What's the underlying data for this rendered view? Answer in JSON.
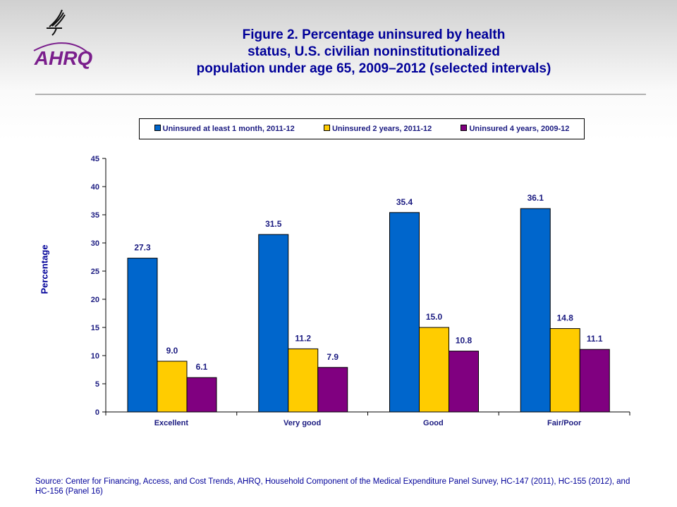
{
  "logo_text": "AHRQ",
  "title": "Figure 2. Percentage uninsured by health status, U.S. civilian noninstitutionalized population under age 65, 2009–2012 (selected intervals)",
  "title_lines": [
    "Figure 2. Percentage uninsured by health",
    "status, U.S. civilian noninstitutionalized",
    "population under age 65, 2009–2012 (selected intervals)"
  ],
  "source": "Source: Center for Financing, Access, and Cost Trends, AHRQ, Household Component of the Medical Expenditure Panel Survey, HC-147 (2011), HC-155 (2012), and HC-156 (Panel 16)",
  "chart_data": {
    "type": "bar",
    "title": "Figure 2. Percentage uninsured by health status, U.S. civilian noninstitutionalized population under age 65, 2009–2012 (selected intervals)",
    "xlabel": "",
    "ylabel": "Percentage",
    "ylim": [
      0,
      45
    ],
    "yticks": [
      0,
      5,
      10,
      15,
      20,
      25,
      30,
      35,
      40,
      45
    ],
    "grid": false,
    "legend_position": "top",
    "categories": [
      "Excellent",
      "Very good",
      "Good",
      "Fair/Poor"
    ],
    "series": [
      {
        "name": "Uninsured at least 1 month, 2011-12",
        "color": "#0066CC",
        "values": [
          27.3,
          31.5,
          35.4,
          36.1
        ]
      },
      {
        "name": "Uninsured 2 years, 2011-12",
        "color": "#FFCC00",
        "values": [
          9.0,
          11.2,
          15.0,
          14.8
        ]
      },
      {
        "name": "Uninsured 4 years, 2009-12",
        "color": "#800080",
        "values": [
          6.1,
          7.9,
          10.8,
          11.1
        ]
      }
    ]
  }
}
